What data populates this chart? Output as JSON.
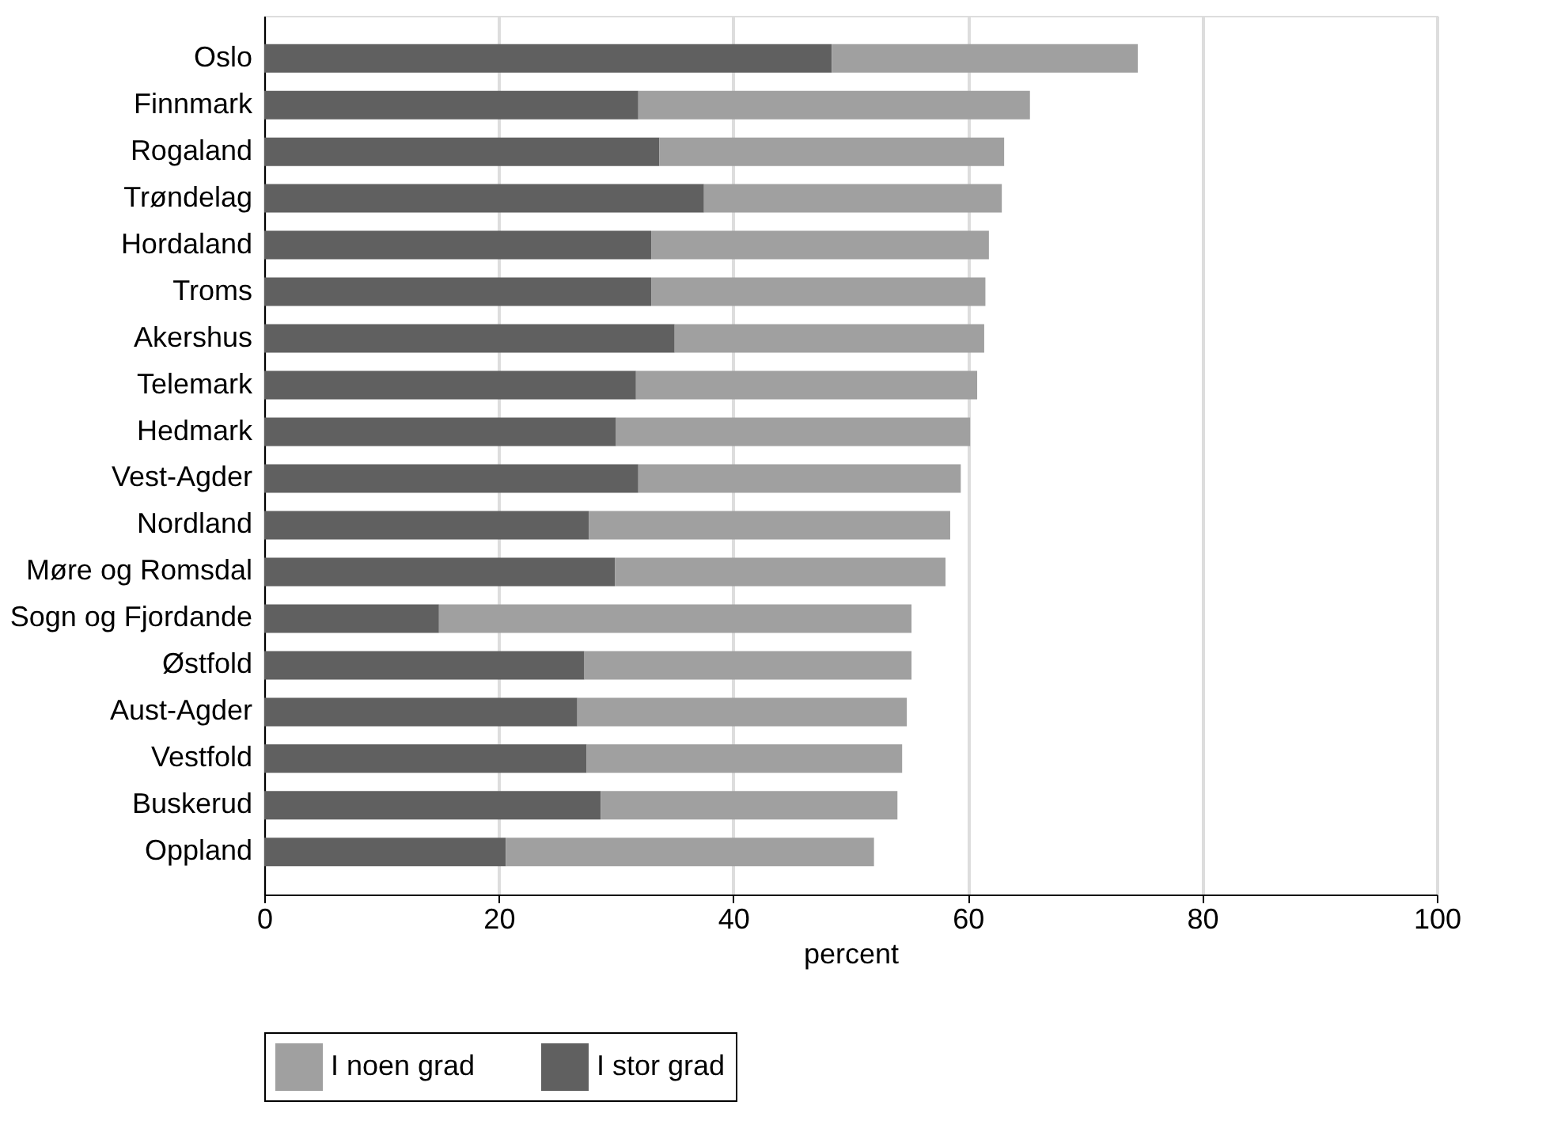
{
  "chart_data": {
    "type": "bar",
    "orientation": "horizontal",
    "stacked": true,
    "xlabel": "percent",
    "categories": [
      "Oslo",
      "Finnmark",
      "Rogaland",
      "Trøndelag",
      "Hordaland",
      "Troms",
      "Akershus",
      "Telemark",
      "Hedmark",
      "Vest-Agder",
      "Nordland",
      "Møre og Romsdal",
      "Sogn og Fjordande",
      "Østfold",
      "Aust-Agder",
      "Vestfold",
      "Buskerud",
      "Oppland"
    ],
    "series": [
      {
        "name": "I stor grad",
        "color": "#606060",
        "values": [
          48.4,
          31.9,
          33.7,
          37.5,
          33.0,
          33.0,
          35.0,
          31.7,
          30.0,
          31.9,
          27.7,
          29.9,
          14.9,
          27.3,
          26.7,
          27.5,
          28.7,
          20.6
        ]
      },
      {
        "name": "I noen grad",
        "color": "#a0a0a0",
        "values": [
          26.1,
          33.4,
          29.4,
          25.4,
          28.8,
          28.5,
          26.4,
          29.1,
          30.2,
          27.5,
          30.8,
          28.2,
          40.3,
          27.9,
          28.1,
          26.9,
          25.3,
          31.4
        ]
      }
    ],
    "xlim": [
      0,
      100
    ],
    "xticks": [
      0,
      20,
      40,
      60,
      80,
      100
    ],
    "grid": "x",
    "legend": "bottom"
  }
}
